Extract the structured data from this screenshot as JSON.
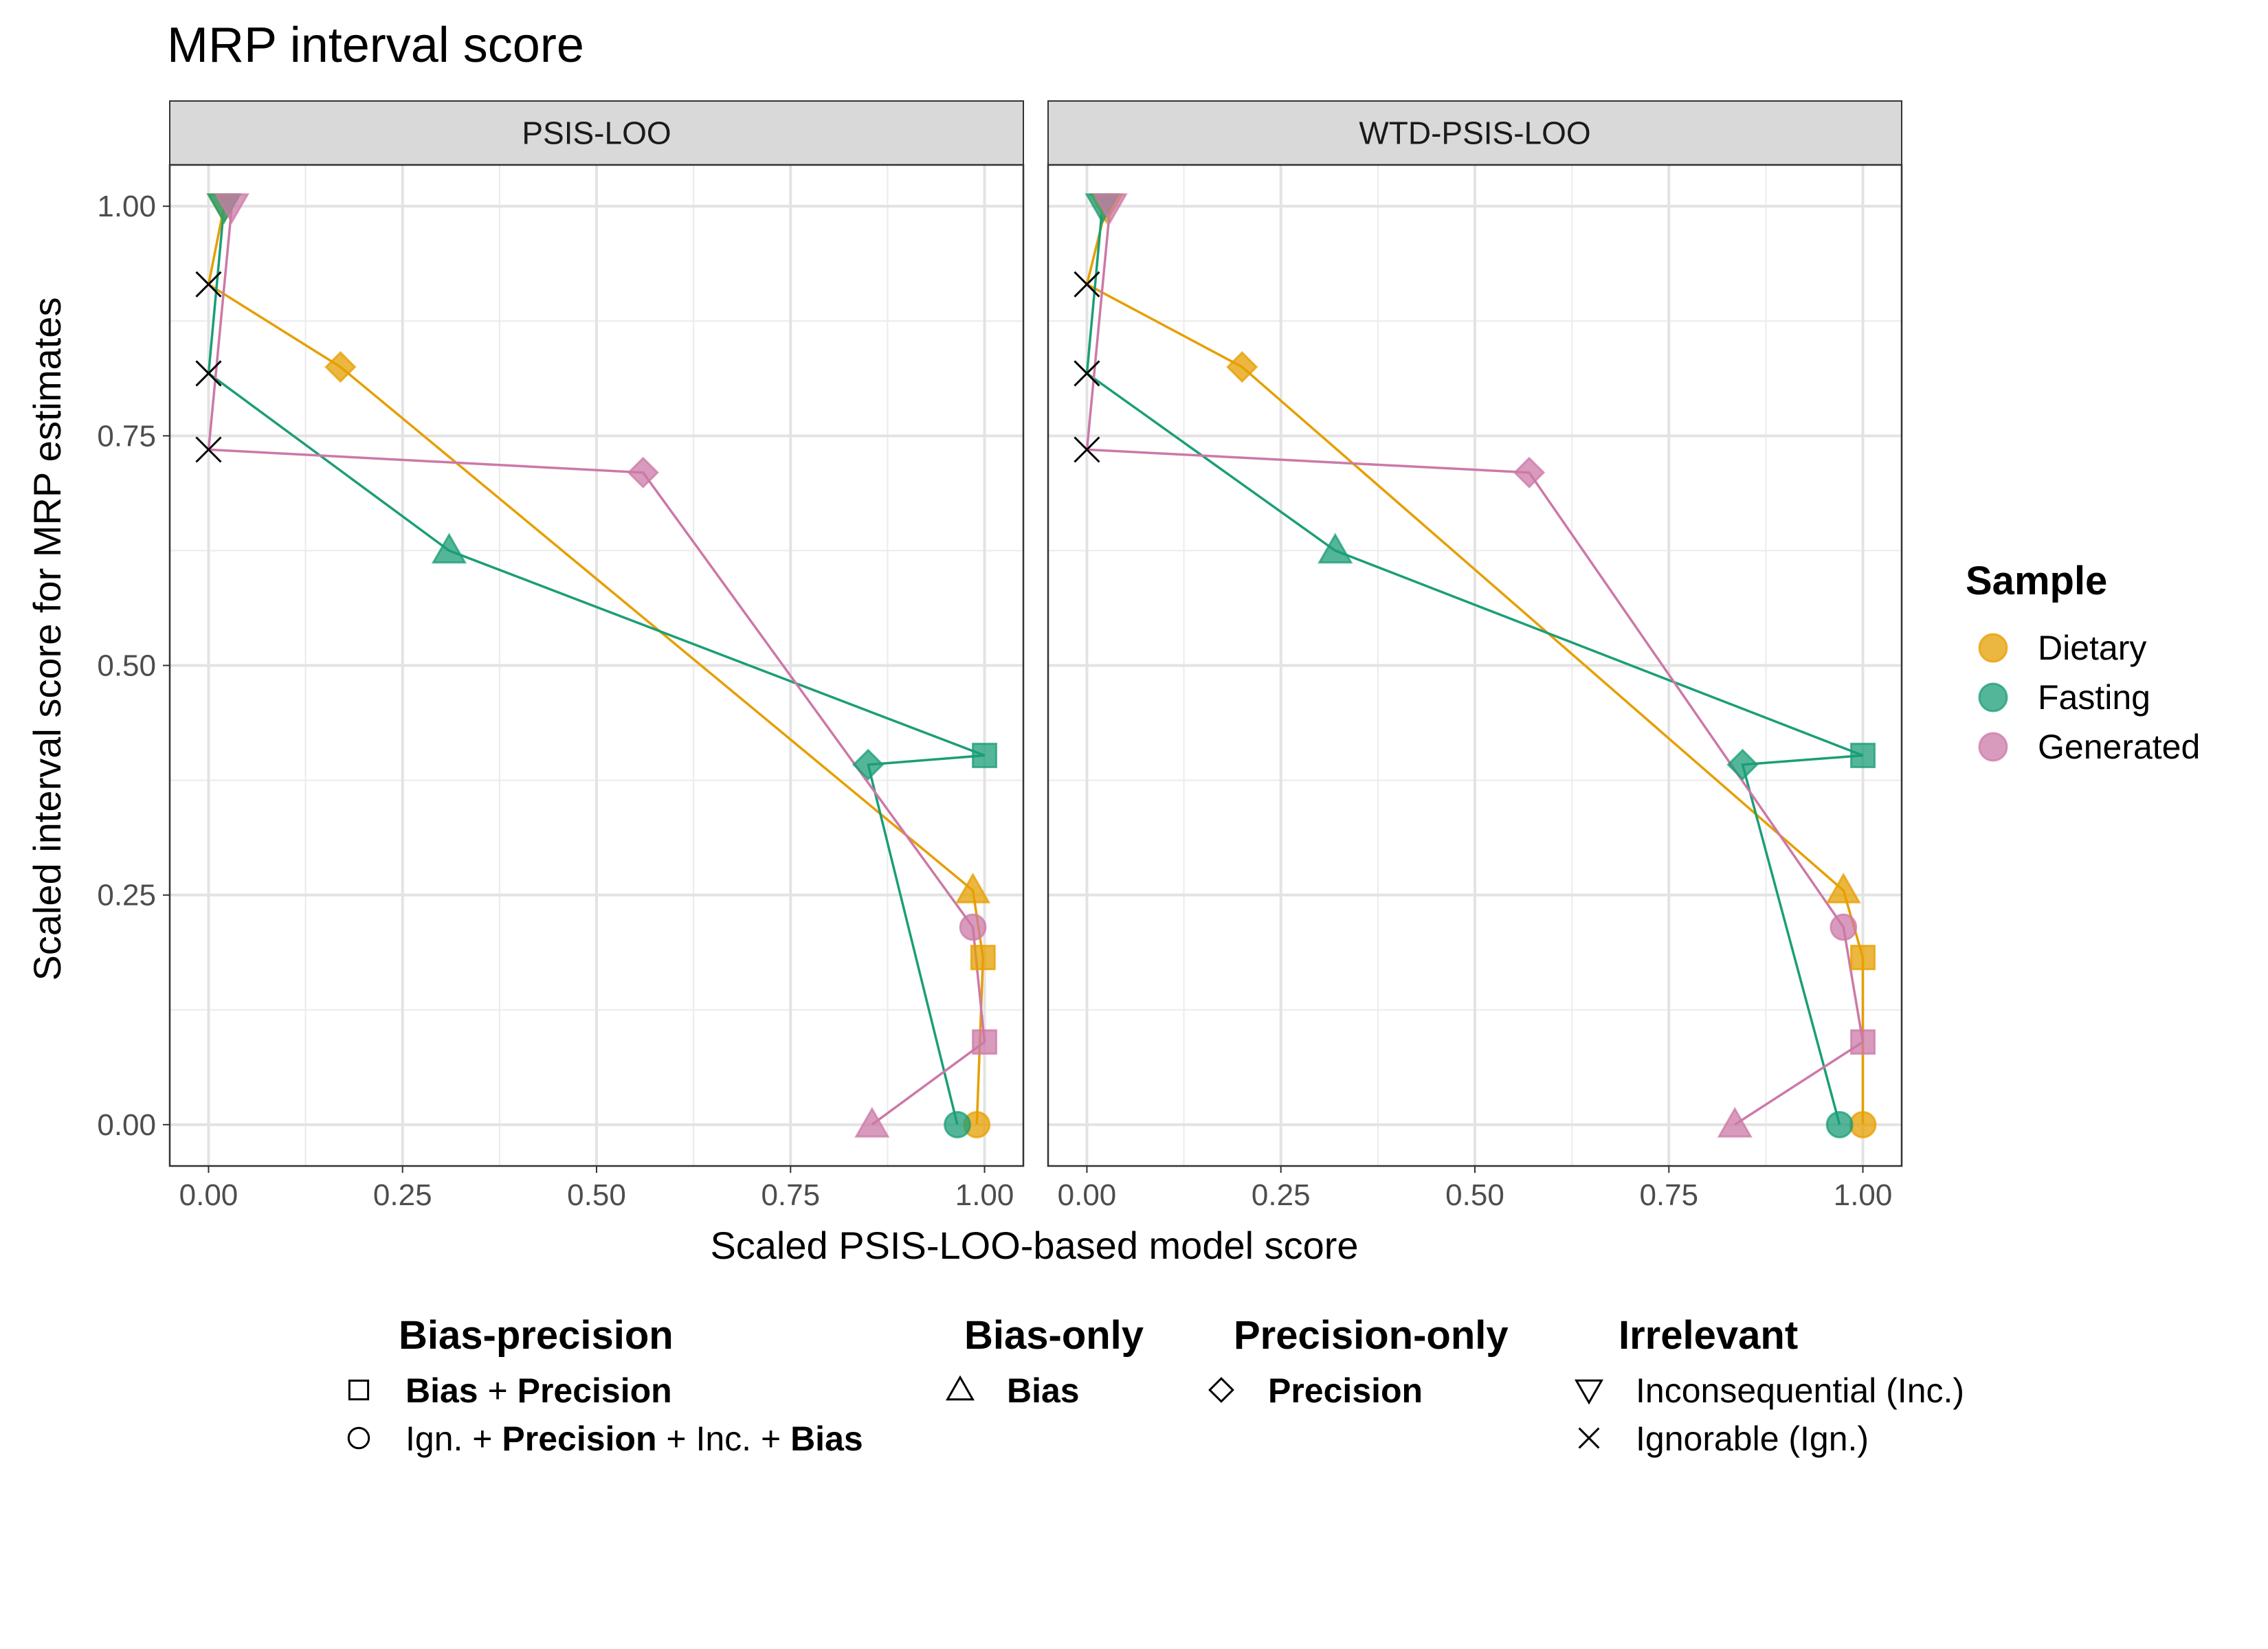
{
  "title": "MRP interval score",
  "chart_data": {
    "type": "scatter",
    "title": "MRP interval score",
    "xlabel": "Scaled PSIS-LOO-based model score",
    "ylabel": "Scaled interval score for MRP estimates",
    "xlim": [
      -0.05,
      1.05
    ],
    "ylim": [
      -0.045,
      1.045
    ],
    "x_ticks": [
      "0.00",
      "0.25",
      "0.50",
      "0.75",
      "1.00"
    ],
    "y_ticks": [
      "0.00",
      "0.25",
      "0.50",
      "0.75",
      "1.00"
    ],
    "grid": true,
    "facets": [
      {
        "label": "PSIS-LOO",
        "series": [
          {
            "name": "Dietary",
            "color": "#E69F00",
            "points": [
              {
                "x": 0.0,
                "y": 0.915,
                "shape": "x"
              },
              {
                "x": 0.02,
                "y": 1.0,
                "shape": "inv-triangle"
              },
              {
                "x": 0.17,
                "y": 0.825,
                "shape": "diamond"
              },
              {
                "x": 0.985,
                "y": 0.255,
                "shape": "triangle"
              },
              {
                "x": 0.998,
                "y": 0.182,
                "shape": "square"
              },
              {
                "x": 0.99,
                "y": 0.0,
                "shape": "circle"
              }
            ]
          },
          {
            "name": "Fasting",
            "color": "#1B9E77",
            "points": [
              {
                "x": 0.0,
                "y": 0.818,
                "shape": "x"
              },
              {
                "x": 0.02,
                "y": 1.0,
                "shape": "inv-triangle"
              },
              {
                "x": 0.31,
                "y": 0.625,
                "shape": "triangle"
              },
              {
                "x": 0.85,
                "y": 0.392,
                "shape": "diamond"
              },
              {
                "x": 0.965,
                "y": 0.0,
                "shape": "circle"
              },
              {
                "x": 1.0,
                "y": 0.402,
                "shape": "square"
              }
            ]
          },
          {
            "name": "Generated",
            "color": "#CC79A7",
            "points": [
              {
                "x": 0.0,
                "y": 0.735,
                "shape": "x"
              },
              {
                "x": 0.03,
                "y": 1.0,
                "shape": "inv-triangle"
              },
              {
                "x": 0.56,
                "y": 0.71,
                "shape": "diamond"
              },
              {
                "x": 0.855,
                "y": 0.0,
                "shape": "triangle"
              },
              {
                "x": 0.985,
                "y": 0.215,
                "shape": "circle"
              },
              {
                "x": 1.0,
                "y": 0.09,
                "shape": "square"
              }
            ]
          }
        ]
      },
      {
        "label": "WTD-PSIS-LOO",
        "series": [
          {
            "name": "Dietary",
            "color": "#E69F00",
            "points": [
              {
                "x": 0.0,
                "y": 0.915,
                "shape": "x"
              },
              {
                "x": 0.025,
                "y": 1.0,
                "shape": "inv-triangle"
              },
              {
                "x": 0.2,
                "y": 0.825,
                "shape": "diamond"
              },
              {
                "x": 0.975,
                "y": 0.255,
                "shape": "triangle"
              },
              {
                "x": 1.0,
                "y": 0.182,
                "shape": "square"
              },
              {
                "x": 1.0,
                "y": 0.0,
                "shape": "circle"
              }
            ]
          },
          {
            "name": "Fasting",
            "color": "#1B9E77",
            "points": [
              {
                "x": 0.0,
                "y": 0.818,
                "shape": "x"
              },
              {
                "x": 0.02,
                "y": 1.0,
                "shape": "inv-triangle"
              },
              {
                "x": 0.32,
                "y": 0.625,
                "shape": "triangle"
              },
              {
                "x": 0.845,
                "y": 0.392,
                "shape": "diamond"
              },
              {
                "x": 0.97,
                "y": 0.0,
                "shape": "circle"
              },
              {
                "x": 1.0,
                "y": 0.402,
                "shape": "square"
              }
            ]
          },
          {
            "name": "Generated",
            "color": "#CC79A7",
            "points": [
              {
                "x": 0.0,
                "y": 0.735,
                "shape": "x"
              },
              {
                "x": 0.03,
                "y": 1.0,
                "shape": "inv-triangle"
              },
              {
                "x": 0.57,
                "y": 0.71,
                "shape": "diamond"
              },
              {
                "x": 0.835,
                "y": 0.0,
                "shape": "triangle"
              },
              {
                "x": 0.975,
                "y": 0.215,
                "shape": "circle"
              },
              {
                "x": 1.0,
                "y": 0.09,
                "shape": "square"
              }
            ]
          }
        ]
      }
    ],
    "legend_sample": {
      "title": "Sample",
      "position": "right",
      "items": [
        {
          "label": "Dietary",
          "color": "#E69F00"
        },
        {
          "label": "Fasting",
          "color": "#1B9E77"
        },
        {
          "label": "Generated",
          "color": "#CC79A7"
        }
      ]
    },
    "legend_shape": {
      "position": "bottom",
      "groups": [
        {
          "title": "Bias-precision",
          "items": [
            {
              "shape": "square",
              "parts": [
                {
                  "text": "Bias",
                  "bold": true
                },
                {
                  "text": " + ",
                  "bold": false
                },
                {
                  "text": "Precision",
                  "bold": true
                }
              ]
            },
            {
              "shape": "circle",
              "parts": [
                {
                  "text": "Ign. + ",
                  "bold": false
                },
                {
                  "text": "Precision",
                  "bold": true
                },
                {
                  "text": " + Inc. + ",
                  "bold": false
                },
                {
                  "text": "Bias",
                  "bold": true
                }
              ]
            }
          ]
        },
        {
          "title": "Bias-only",
          "items": [
            {
              "shape": "triangle",
              "parts": [
                {
                  "text": "Bias",
                  "bold": true
                }
              ]
            }
          ]
        },
        {
          "title": "Precision-only",
          "items": [
            {
              "shape": "diamond",
              "parts": [
                {
                  "text": "Precision",
                  "bold": true
                }
              ]
            }
          ]
        },
        {
          "title": "Irrelevant",
          "items": [
            {
              "shape": "inv-triangle",
              "parts": [
                {
                  "text": "Inconsequential (Inc.)",
                  "bold": false
                }
              ]
            },
            {
              "shape": "x",
              "parts": [
                {
                  "text": "Ignorable (Ign.)",
                  "bold": false
                }
              ]
            }
          ]
        }
      ]
    }
  }
}
